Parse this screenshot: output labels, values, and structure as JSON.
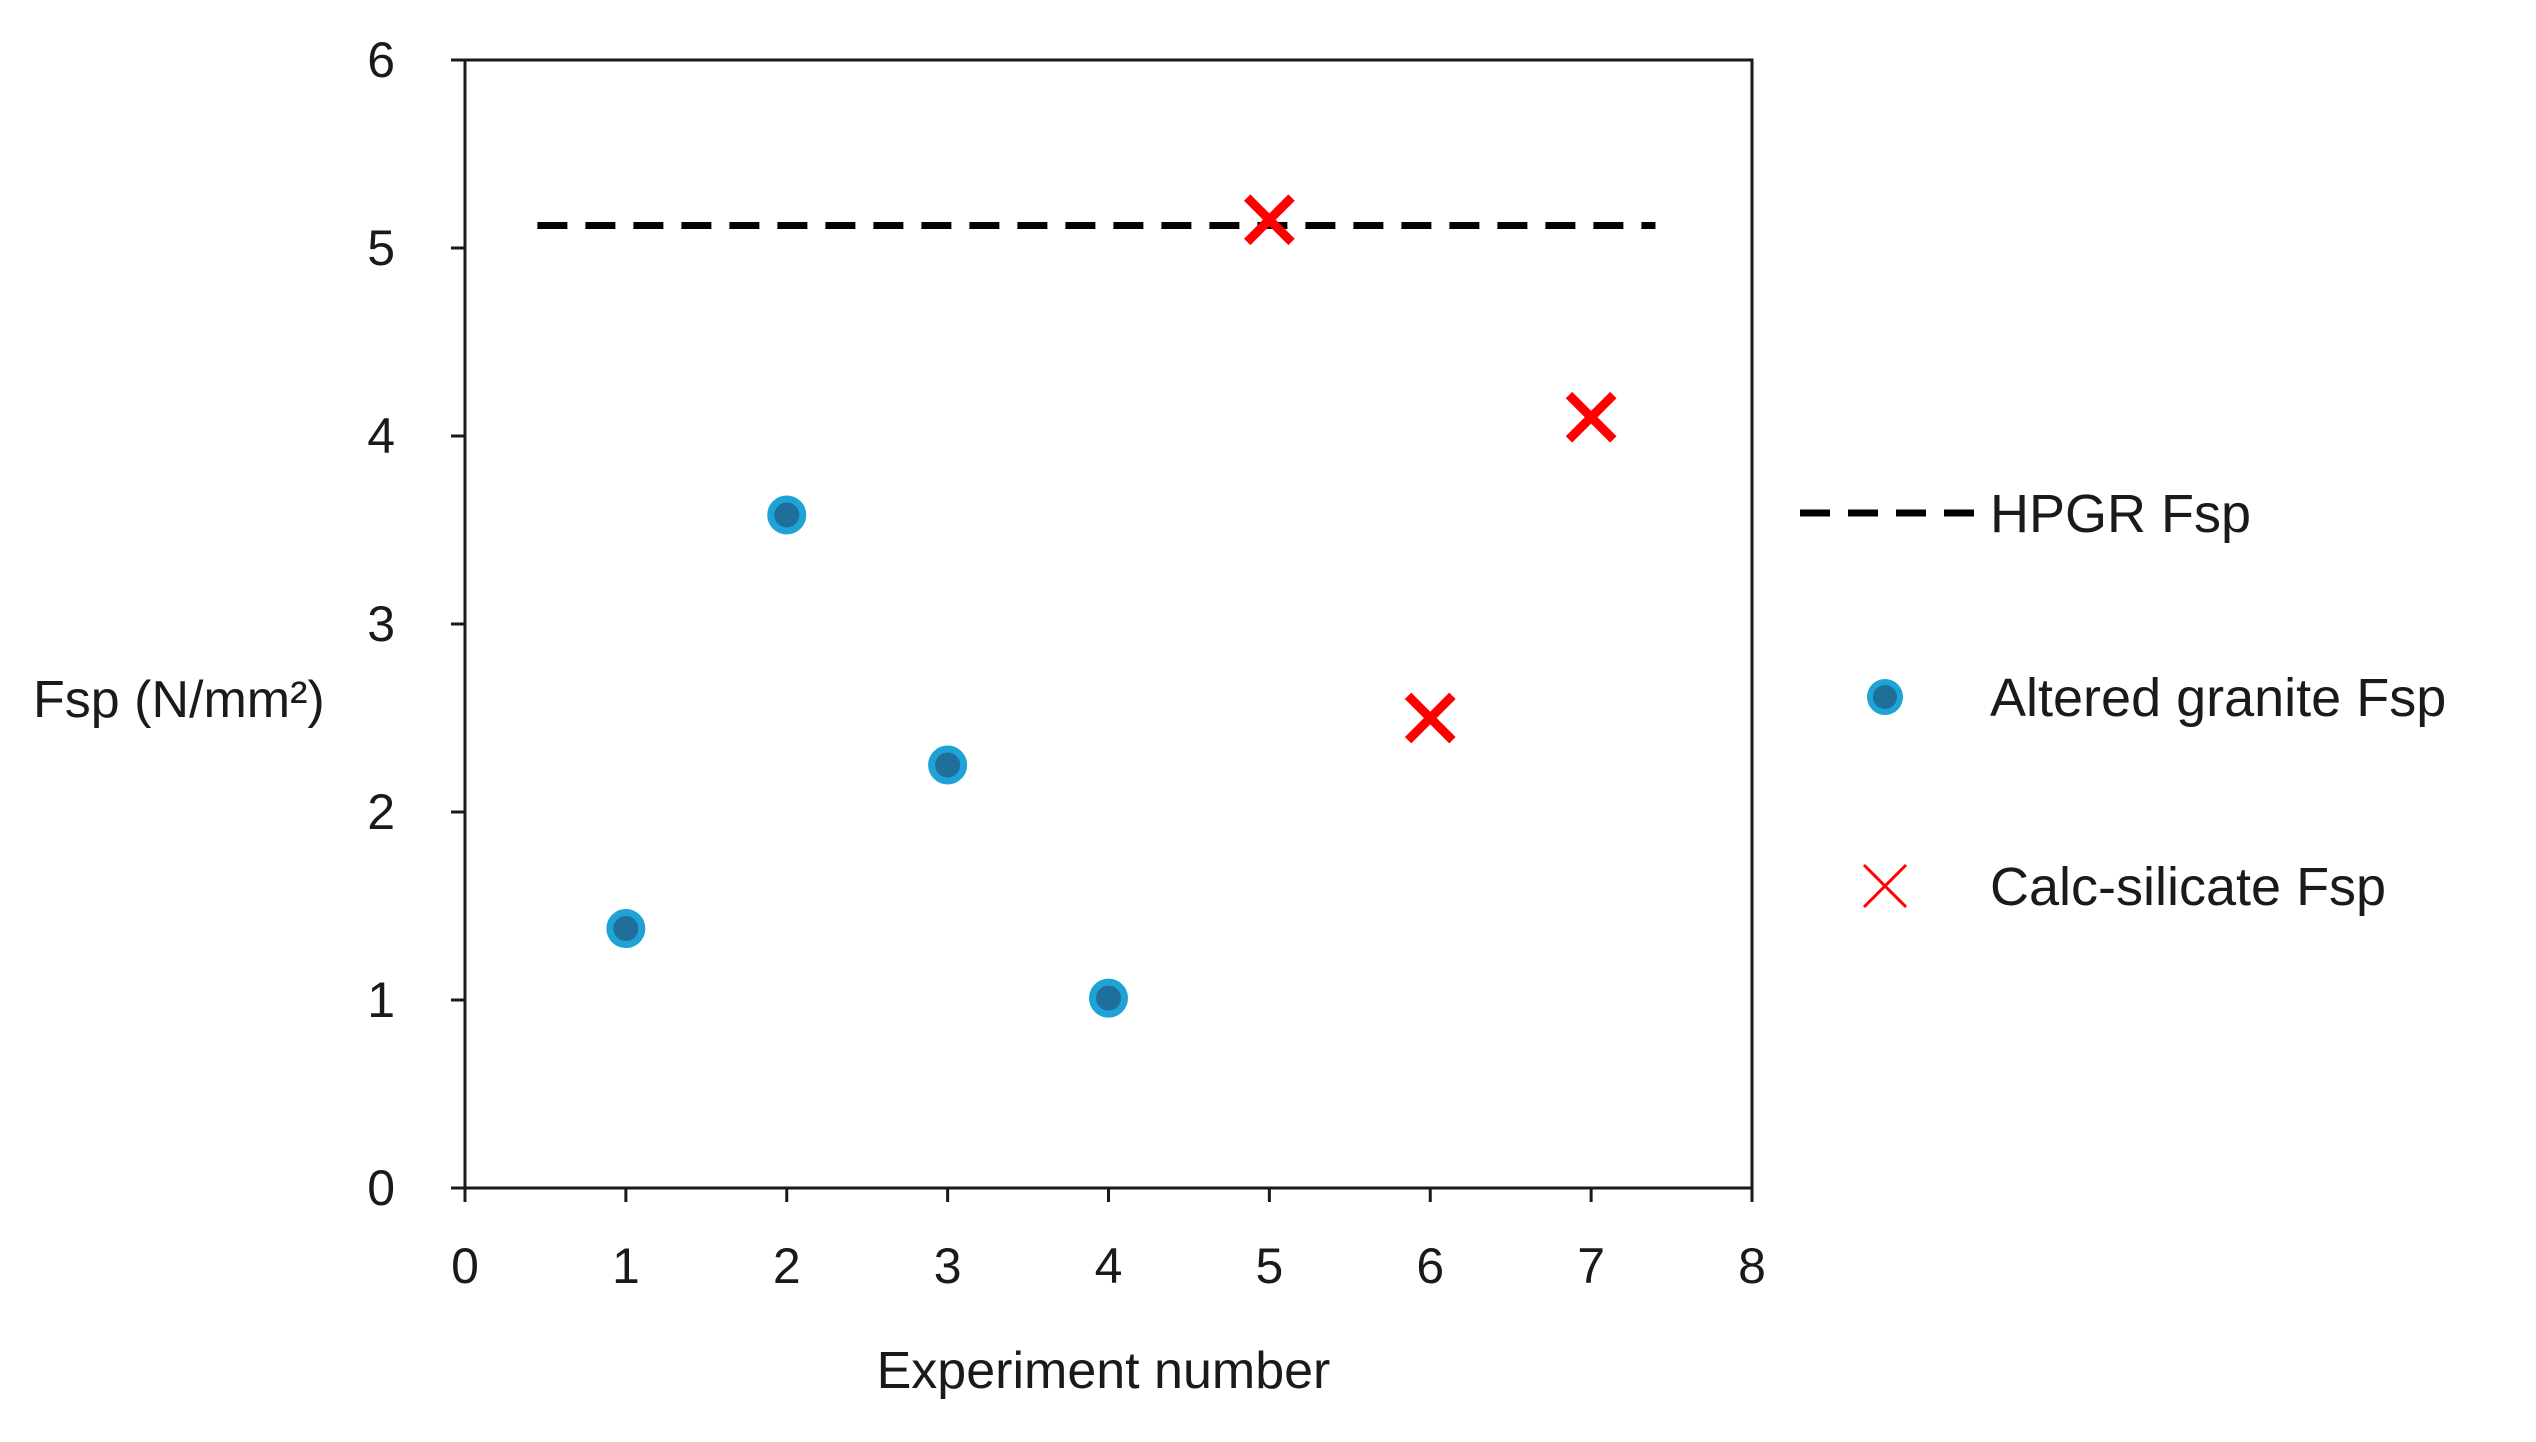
{
  "chart_data": {
    "type": "scatter",
    "title": "",
    "xlabel": "Experiment number",
    "ylabel": "Fsp (N/mm²)",
    "xlim": [
      0,
      8
    ],
    "ylim": [
      0,
      6
    ],
    "xticks": [
      "0",
      "1",
      "2",
      "3",
      "4",
      "5",
      "6",
      "7",
      "8"
    ],
    "yticks": [
      "0",
      "1",
      "2",
      "3",
      "4",
      "5",
      "6"
    ],
    "grid": false,
    "legend_position": "right",
    "series": [
      {
        "name": "HPGR Fsp",
        "kind": "line",
        "style": "dashed",
        "color": "#000000",
        "x": [
          0.45,
          7.4
        ],
        "y": [
          5.12,
          5.12
        ]
      },
      {
        "name": "Altered granite Fsp",
        "kind": "scatter",
        "marker": "circle",
        "color": "#1fa3d6",
        "x": [
          1,
          2,
          3,
          4
        ],
        "y": [
          1.38,
          3.58,
          2.25,
          1.01
        ]
      },
      {
        "name": "Calc-silicate Fsp",
        "kind": "scatter",
        "marker": "x",
        "color": "#ff0000",
        "x": [
          5,
          6,
          7
        ],
        "y": [
          5.15,
          2.5,
          4.1
        ]
      }
    ]
  }
}
